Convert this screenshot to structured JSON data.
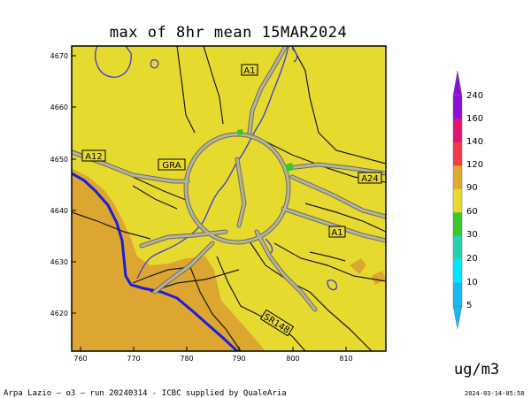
{
  "title": "max of 8hr mean 15MAR2024",
  "unit": "ug/m3",
  "footer": {
    "left": "Arpa Lazio — o3 — run 20240314 - ICBC supplied by QualeAria",
    "right": "2024-03-14-05:58"
  },
  "axes": {
    "x_ticks": [
      "760",
      "770",
      "780",
      "790",
      "800",
      "810"
    ],
    "y_ticks": [
      "4670",
      "4660",
      "4650",
      "4640",
      "4630",
      "4620"
    ]
  },
  "colorbar": {
    "labels": [
      "240",
      "160",
      "140",
      "120",
      "90",
      "60",
      "30",
      "20",
      "10",
      "5"
    ],
    "colors": [
      "#8a12d8",
      "#e2166e",
      "#f03c4a",
      "#e0a82e",
      "#e6da2e",
      "#38c828",
      "#23d3b0",
      "#00e8ff",
      "#18b8f2"
    ]
  },
  "roads": {
    "a1_north": "A1",
    "a12": "A12",
    "gra": "GRA",
    "a24": "A24",
    "a1_east": "A1",
    "sr148": "SR148"
  },
  "colors": {
    "land": "#e6da2e",
    "coast": "#dda630",
    "sea_line": "#1c1cdc",
    "river": "#3a3ad6",
    "road": "#9a9a80"
  }
}
